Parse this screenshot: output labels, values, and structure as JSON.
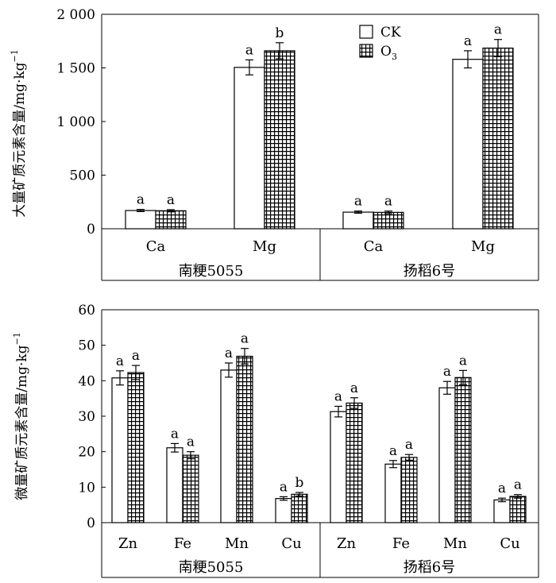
{
  "chart_data": [
    {
      "type": "bar",
      "ylabel": "大量矿质元素含量/mg·kg",
      "ylabel_sup": "−1",
      "ylim": [
        0,
        2000
      ],
      "yticks": [
        0,
        500,
        1000,
        1500,
        2000
      ],
      "ytick_labels": [
        "0",
        "500",
        "1 000",
        "1 500",
        "2 000"
      ],
      "groups": [
        "南粳5055",
        "扬稻6号"
      ],
      "categories": [
        "Ca",
        "Mg"
      ],
      "series": [
        {
          "name": "CK",
          "pattern": "white",
          "values": [
            [
              170,
              1505
            ],
            [
              155,
              1580
            ]
          ],
          "errors": [
            [
              10,
              70
            ],
            [
              10,
              80
            ]
          ],
          "letters": [
            [
              "a",
              "a"
            ],
            [
              "a",
              "a"
            ]
          ]
        },
        {
          "name": "O",
          "name_sub": "3",
          "pattern": "grid",
          "values": [
            [
              168,
              1660
            ],
            [
              153,
              1685
            ]
          ],
          "errors": [
            [
              10,
              75
            ],
            [
              12,
              80
            ]
          ],
          "letters": [
            [
              "a",
              "b"
            ],
            [
              "a",
              "a"
            ]
          ]
        }
      ],
      "legend_position": "top-center"
    },
    {
      "type": "bar",
      "ylabel": "微量矿质元素含量/mg·kg",
      "ylabel_sup": "−1",
      "ylim": [
        0,
        60
      ],
      "yticks": [
        0,
        10,
        20,
        30,
        40,
        50,
        60
      ],
      "ytick_labels": [
        "0",
        "10",
        "20",
        "30",
        "40",
        "50",
        "60"
      ],
      "groups": [
        "南粳5055",
        "扬稻6号"
      ],
      "categories": [
        "Zn",
        "Fe",
        "Mn",
        "Cu"
      ],
      "series": [
        {
          "name": "CK",
          "pattern": "white",
          "values": [
            [
              40.8,
              21.1,
              43.0,
              6.8
            ],
            [
              31.3,
              16.5,
              38.0,
              6.4
            ]
          ],
          "errors": [
            [
              2.0,
              1.2,
              2.0,
              0.5
            ],
            [
              1.5,
              1.0,
              1.8,
              0.5
            ]
          ],
          "letters": [
            [
              "a",
              "a",
              "a",
              "a"
            ],
            [
              "a",
              "a",
              "a",
              "a"
            ]
          ]
        },
        {
          "name": "O",
          "name_sub": "3",
          "pattern": "grid",
          "values": [
            [
              42.3,
              19.0,
              46.9,
              8.0
            ],
            [
              33.7,
              18.4,
              40.9,
              7.4
            ]
          ],
          "errors": [
            [
              2.0,
              1.0,
              2.2,
              0.5
            ],
            [
              1.5,
              0.8,
              2.0,
              0.5
            ]
          ],
          "letters": [
            [
              "a",
              "a",
              "a",
              "b"
            ],
            [
              "a",
              "a",
              "a",
              "a"
            ]
          ]
        }
      ]
    }
  ]
}
